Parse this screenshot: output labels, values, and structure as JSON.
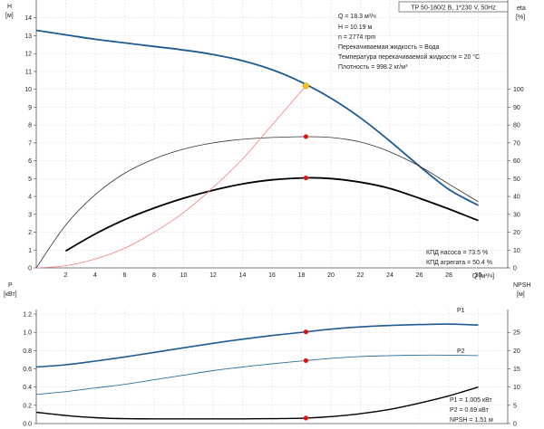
{
  "chart_data": [
    {
      "type": "line",
      "panel": "head-efficiency",
      "title": "TP 50-180/2 B, 1*230 V, 50Hz",
      "left_axis": {
        "label": "H",
        "unit": "[м]",
        "ylim": [
          0,
          15
        ],
        "ticks": [
          0,
          1,
          2,
          3,
          4,
          5,
          6,
          7,
          8,
          9,
          10,
          11,
          12,
          13,
          14
        ]
      },
      "right_axis": {
        "label": "eta",
        "unit": "[%]",
        "ylim": [
          0,
          150
        ],
        "ticks": [
          0,
          10,
          20,
          30,
          40,
          50,
          60,
          70,
          80,
          90,
          100
        ]
      },
      "x_axis": {
        "label": "Q [м³/ч]",
        "xlim": [
          0,
          32
        ],
        "ticks": [
          2,
          4,
          6,
          8,
          10,
          12,
          14,
          16,
          18,
          20,
          22,
          24,
          26,
          28,
          30
        ],
        "tick_labels": [
          "2",
          "4",
          "6",
          "8",
          "10",
          "12",
          "14",
          "16",
          "18",
          "20",
          "22",
          "24",
          "26",
          "28",
          "30"
        ]
      },
      "grid": true,
      "series": [
        {
          "axis": "left",
          "color": "#1f5a92",
          "x": [
            0,
            2,
            4,
            6,
            8,
            10,
            12,
            14,
            16,
            18,
            20,
            22,
            24,
            26,
            28,
            30
          ],
          "y": [
            13.3,
            13.05,
            12.8,
            12.6,
            12.4,
            12.2,
            11.95,
            11.6,
            11.1,
            10.4,
            9.5,
            8.4,
            7.1,
            5.7,
            4.4,
            3.5
          ]
        },
        {
          "axis": "right",
          "color": "#333333",
          "x": [
            0,
            2,
            4,
            6,
            8,
            10,
            12,
            14,
            16,
            18.3,
            20,
            22,
            24,
            26,
            28,
            30
          ],
          "y": [
            0,
            24,
            41,
            53,
            61,
            66.5,
            70,
            72,
            73,
            73.5,
            73,
            70.5,
            65,
            57,
            47,
            37
          ]
        },
        {
          "axis": "right",
          "color": "#000000",
          "x": [
            2,
            4,
            6,
            8,
            10,
            12,
            14,
            16,
            18.3,
            20,
            22,
            24,
            26,
            28,
            30
          ],
          "y": [
            9.5,
            19,
            27,
            33.5,
            39,
            43.5,
            47,
            49.3,
            50.4,
            50,
            48,
            44.5,
            39,
            33,
            26.5
          ]
        },
        {
          "axis": "left",
          "color": "#f08080",
          "x": [
            0,
            2,
            4,
            6,
            8,
            10,
            12,
            14,
            16,
            18.3
          ],
          "y": [
            0,
            0.12,
            0.5,
            1.1,
            2.0,
            3.1,
            4.5,
            6.1,
            8.0,
            10.19
          ]
        }
      ],
      "operating_point": {
        "x": 18.3,
        "head": 10.19,
        "eta_pump": 73.5,
        "eta_unit": 50.4
      },
      "info_lines": [
        "Q = 18.3 м³/ч",
        "H = 10.19 м",
        "n = 2774 rpm",
        "Перекачиваемая жидкость = Вода",
        "Температура перекачиваемой жидкости = 20 °C",
        "Плотность = 998.2 кг/м³"
      ],
      "eta_labels": [
        "КПД насоса = 73.5 %",
        "КПД агрегата = 50.4 %"
      ]
    },
    {
      "type": "line",
      "panel": "power-npsh",
      "left_axis": {
        "label": "P",
        "unit": "[кВт]",
        "ylim": [
          0,
          1.25
        ],
        "ticks": [
          0.0,
          0.2,
          0.4,
          0.6,
          0.8,
          1.0,
          1.2
        ],
        "tick_labels": [
          "0.0",
          "0.2",
          "0.4",
          "0.6",
          "0.8",
          "1.0",
          "1.2"
        ]
      },
      "right_axis": {
        "label": "NPSH",
        "unit": "[м]",
        "ylim": [
          0,
          31.25
        ],
        "ticks": [
          0,
          5,
          10,
          15,
          20,
          25
        ]
      },
      "x_axis": {
        "xlim": [
          0,
          32
        ],
        "ticks": [
          0,
          2,
          4,
          6,
          8,
          10,
          12,
          14,
          16,
          18,
          20,
          22,
          24,
          26,
          28,
          30
        ]
      },
      "grid": true,
      "series": [
        {
          "name": "P1",
          "axis": "left",
          "color": "#1f5a92",
          "x": [
            0,
            2,
            4,
            6,
            8,
            10,
            12,
            14,
            16,
            18.3,
            20,
            22,
            24,
            26,
            28,
            30
          ],
          "y": [
            0.62,
            0.645,
            0.685,
            0.73,
            0.78,
            0.83,
            0.88,
            0.925,
            0.965,
            1.005,
            1.035,
            1.06,
            1.075,
            1.085,
            1.09,
            1.08
          ]
        },
        {
          "name": "P2",
          "axis": "left",
          "color": "#2f6e9e",
          "x": [
            0,
            2,
            4,
            6,
            8,
            10,
            12,
            14,
            16,
            18.3,
            20,
            22,
            24,
            26,
            28,
            30
          ],
          "y": [
            0.32,
            0.35,
            0.39,
            0.43,
            0.48,
            0.53,
            0.58,
            0.62,
            0.655,
            0.69,
            0.715,
            0.735,
            0.745,
            0.75,
            0.75,
            0.745
          ]
        },
        {
          "axis": "right",
          "color": "#000000",
          "x": [
            0,
            2,
            4,
            6,
            8,
            10,
            12,
            14,
            16,
            18.3,
            20,
            22,
            24,
            26,
            28,
            30
          ],
          "y": [
            3.1,
            2.2,
            1.6,
            1.35,
            1.3,
            1.3,
            1.3,
            1.3,
            1.35,
            1.51,
            1.9,
            2.7,
            3.9,
            5.6,
            7.6,
            10.0
          ]
        }
      ],
      "operating_point": {
        "x": 18.3,
        "p1": 1.005,
        "p2": 0.69,
        "npsh": 1.51
      },
      "value_labels": [
        "P1 = 1.005 кВт",
        "P2 = 0.69 кВт",
        "NPSH = 1.51 м"
      ]
    }
  ]
}
